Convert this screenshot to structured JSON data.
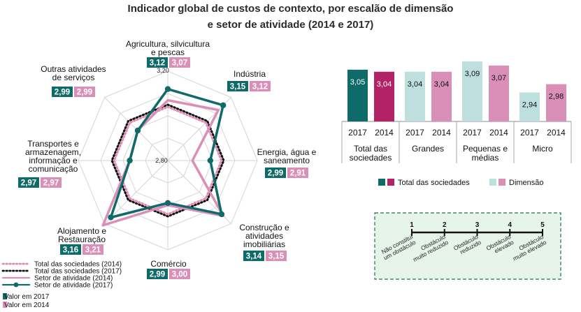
{
  "title_line1": "Indicador global de custos de contexto, por escalão de dimensão",
  "title_line2": "e setor de atividade (2014 e 2017)",
  "colors": {
    "teal": "#0f6b69",
    "magenta": "#b12366",
    "light_teal": "#bde0df",
    "pink": "#d98fb7",
    "dotted_2014": "#e08ab4",
    "dotted_2017": "#111111"
  },
  "chart_data": [
    {
      "type": "radar",
      "axis_range": [
        2.8,
        3.2
      ],
      "scale_labels": [
        "3,20",
        "2,80"
      ],
      "axes": [
        {
          "label_lines": [
            "Agricultura, silvicultura",
            "e pescas"
          ],
          "v2017": "3,12",
          "v2014": "3,07"
        },
        {
          "label_lines": [
            "Indústria"
          ],
          "v2017": "3,15",
          "v2014": "3,12"
        },
        {
          "label_lines": [
            "Energia, água e",
            "saneamento"
          ],
          "v2017": "2,99",
          "v2014": "2,91"
        },
        {
          "label_lines": [
            "Construção e",
            "atividades",
            "imobiliárias"
          ],
          "v2017": "3,14",
          "v2014": "3,15"
        },
        {
          "label_lines": [
            "Comércio"
          ],
          "v2017": "2,99",
          "v2014": "3,00"
        },
        {
          "label_lines": [
            "Alojamento e",
            "Restauração"
          ],
          "v2017": "3,16",
          "v2014": "3,21"
        },
        {
          "label_lines": [
            "Transportes e",
            "armazenagem,",
            "informação e",
            "comunicação"
          ],
          "v2017": "2,97",
          "v2014": "2,97"
        },
        {
          "label_lines": [
            "Outras atividades",
            "de serviços"
          ],
          "v2017": "2,99",
          "v2014": "2,99"
        }
      ],
      "series": [
        {
          "name": "Total das sociedades (2014)",
          "style": "dotted",
          "values": [
            3.04,
            3.04,
            3.04,
            3.04,
            3.04,
            3.04,
            3.04,
            3.04
          ]
        },
        {
          "name": "Total das sociedades (2017)",
          "style": "dotted",
          "values": [
            3.05,
            3.05,
            3.05,
            3.05,
            3.05,
            3.05,
            3.05,
            3.05
          ]
        },
        {
          "name": "Setor de atividade (2014)",
          "style": "line",
          "values": [
            3.07,
            3.12,
            2.91,
            3.15,
            3.0,
            3.21,
            2.97,
            2.99
          ]
        },
        {
          "name": "Setor de atividade (2017)",
          "style": "line-marker",
          "values": [
            3.12,
            3.15,
            2.99,
            3.14,
            2.99,
            3.16,
            2.97,
            2.99
          ]
        }
      ],
      "legend_extra": [
        "Valor em 2017",
        "Valor em 2014"
      ]
    },
    {
      "type": "bar",
      "ylim": [
        2.8,
        3.1
      ],
      "groups": [
        {
          "label_lines": [
            "Total das",
            "sociedades"
          ],
          "bars": [
            {
              "year": "2017",
              "value": 3.05,
              "text": "3,05"
            },
            {
              "year": "2014",
              "value": 3.04,
              "text": "3,04"
            }
          ]
        },
        {
          "label_lines": [
            "Grandes"
          ],
          "bars": [
            {
              "year": "2017",
              "value": 3.04,
              "text": "3,04"
            },
            {
              "year": "2014",
              "value": 3.04,
              "text": "3,04"
            }
          ]
        },
        {
          "label_lines": [
            "Pequenas e",
            "médias"
          ],
          "bars": [
            {
              "year": "2017",
              "value": 3.09,
              "text": "3,09"
            },
            {
              "year": "2014",
              "value": 3.07,
              "text": "3,07"
            }
          ]
        },
        {
          "label_lines": [
            "Micro"
          ],
          "bars": [
            {
              "year": "2017",
              "value": 2.94,
              "text": "2,94"
            },
            {
              "year": "2014",
              "value": 2.98,
              "text": "2,98"
            }
          ]
        }
      ],
      "legend": [
        "Total das sociedades",
        "Dimensão"
      ]
    }
  ],
  "scale_legend": {
    "points": [
      {
        "n": "1",
        "lines": [
          "Não constitui",
          "um obstáculo"
        ]
      },
      {
        "n": "2",
        "lines": [
          "Obstáculo",
          "muito reduzido"
        ]
      },
      {
        "n": "3",
        "lines": [
          "Obstáculo",
          "reduzido"
        ]
      },
      {
        "n": "4",
        "lines": [
          "Obstáculo",
          "elevado"
        ]
      },
      {
        "n": "5",
        "lines": [
          "Obstáculo",
          "muito elevado"
        ]
      }
    ]
  }
}
